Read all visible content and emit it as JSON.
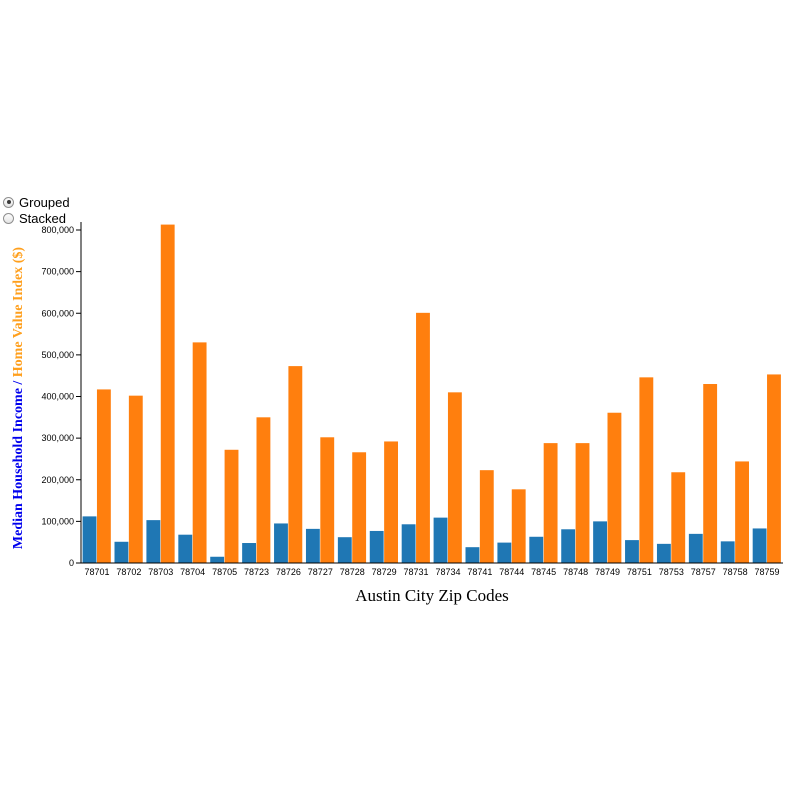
{
  "controls": {
    "options": [
      {
        "label": "Grouped",
        "checked": true
      },
      {
        "label": "Stacked",
        "checked": false
      }
    ]
  },
  "colors": {
    "income": "#1f77b4",
    "home_value": "#ff7f0e",
    "ylabel_income": "#0000ee",
    "ylabel_home": "#ff9f1c"
  },
  "chart_data": {
    "type": "bar",
    "mode": "grouped",
    "categories": [
      "78701",
      "78702",
      "78703",
      "78704",
      "78705",
      "78723",
      "78726",
      "78727",
      "78728",
      "78729",
      "78731",
      "78734",
      "78741",
      "78744",
      "78745",
      "78748",
      "78749",
      "78751",
      "78753",
      "78757",
      "78758",
      "78759"
    ],
    "series": [
      {
        "name": "Median Household Income",
        "values": [
          112000,
          51000,
          103000,
          68000,
          15000,
          48000,
          95000,
          82000,
          62000,
          77000,
          93000,
          109000,
          38000,
          49000,
          63000,
          81000,
          100000,
          55000,
          46000,
          70000,
          52000,
          83000
        ]
      },
      {
        "name": "Home Value Index ($)",
        "values": [
          417000,
          402000,
          813000,
          530000,
          272000,
          350000,
          473000,
          302000,
          266000,
          292000,
          601000,
          410000,
          223000,
          177000,
          288000,
          288000,
          361000,
          446000,
          218000,
          430000,
          244000,
          453000
        ]
      }
    ],
    "xlabel": "Austin City Zip Codes",
    "ylabel_parts": [
      "Median Household Income",
      " / ",
      "Home Value Index ($)"
    ],
    "ylim": [
      0,
      800000
    ],
    "yticks": [
      "0",
      "100,000",
      "200,000",
      "300,000",
      "400,000",
      "500,000",
      "600,000",
      "700,000",
      "800,000"
    ]
  }
}
